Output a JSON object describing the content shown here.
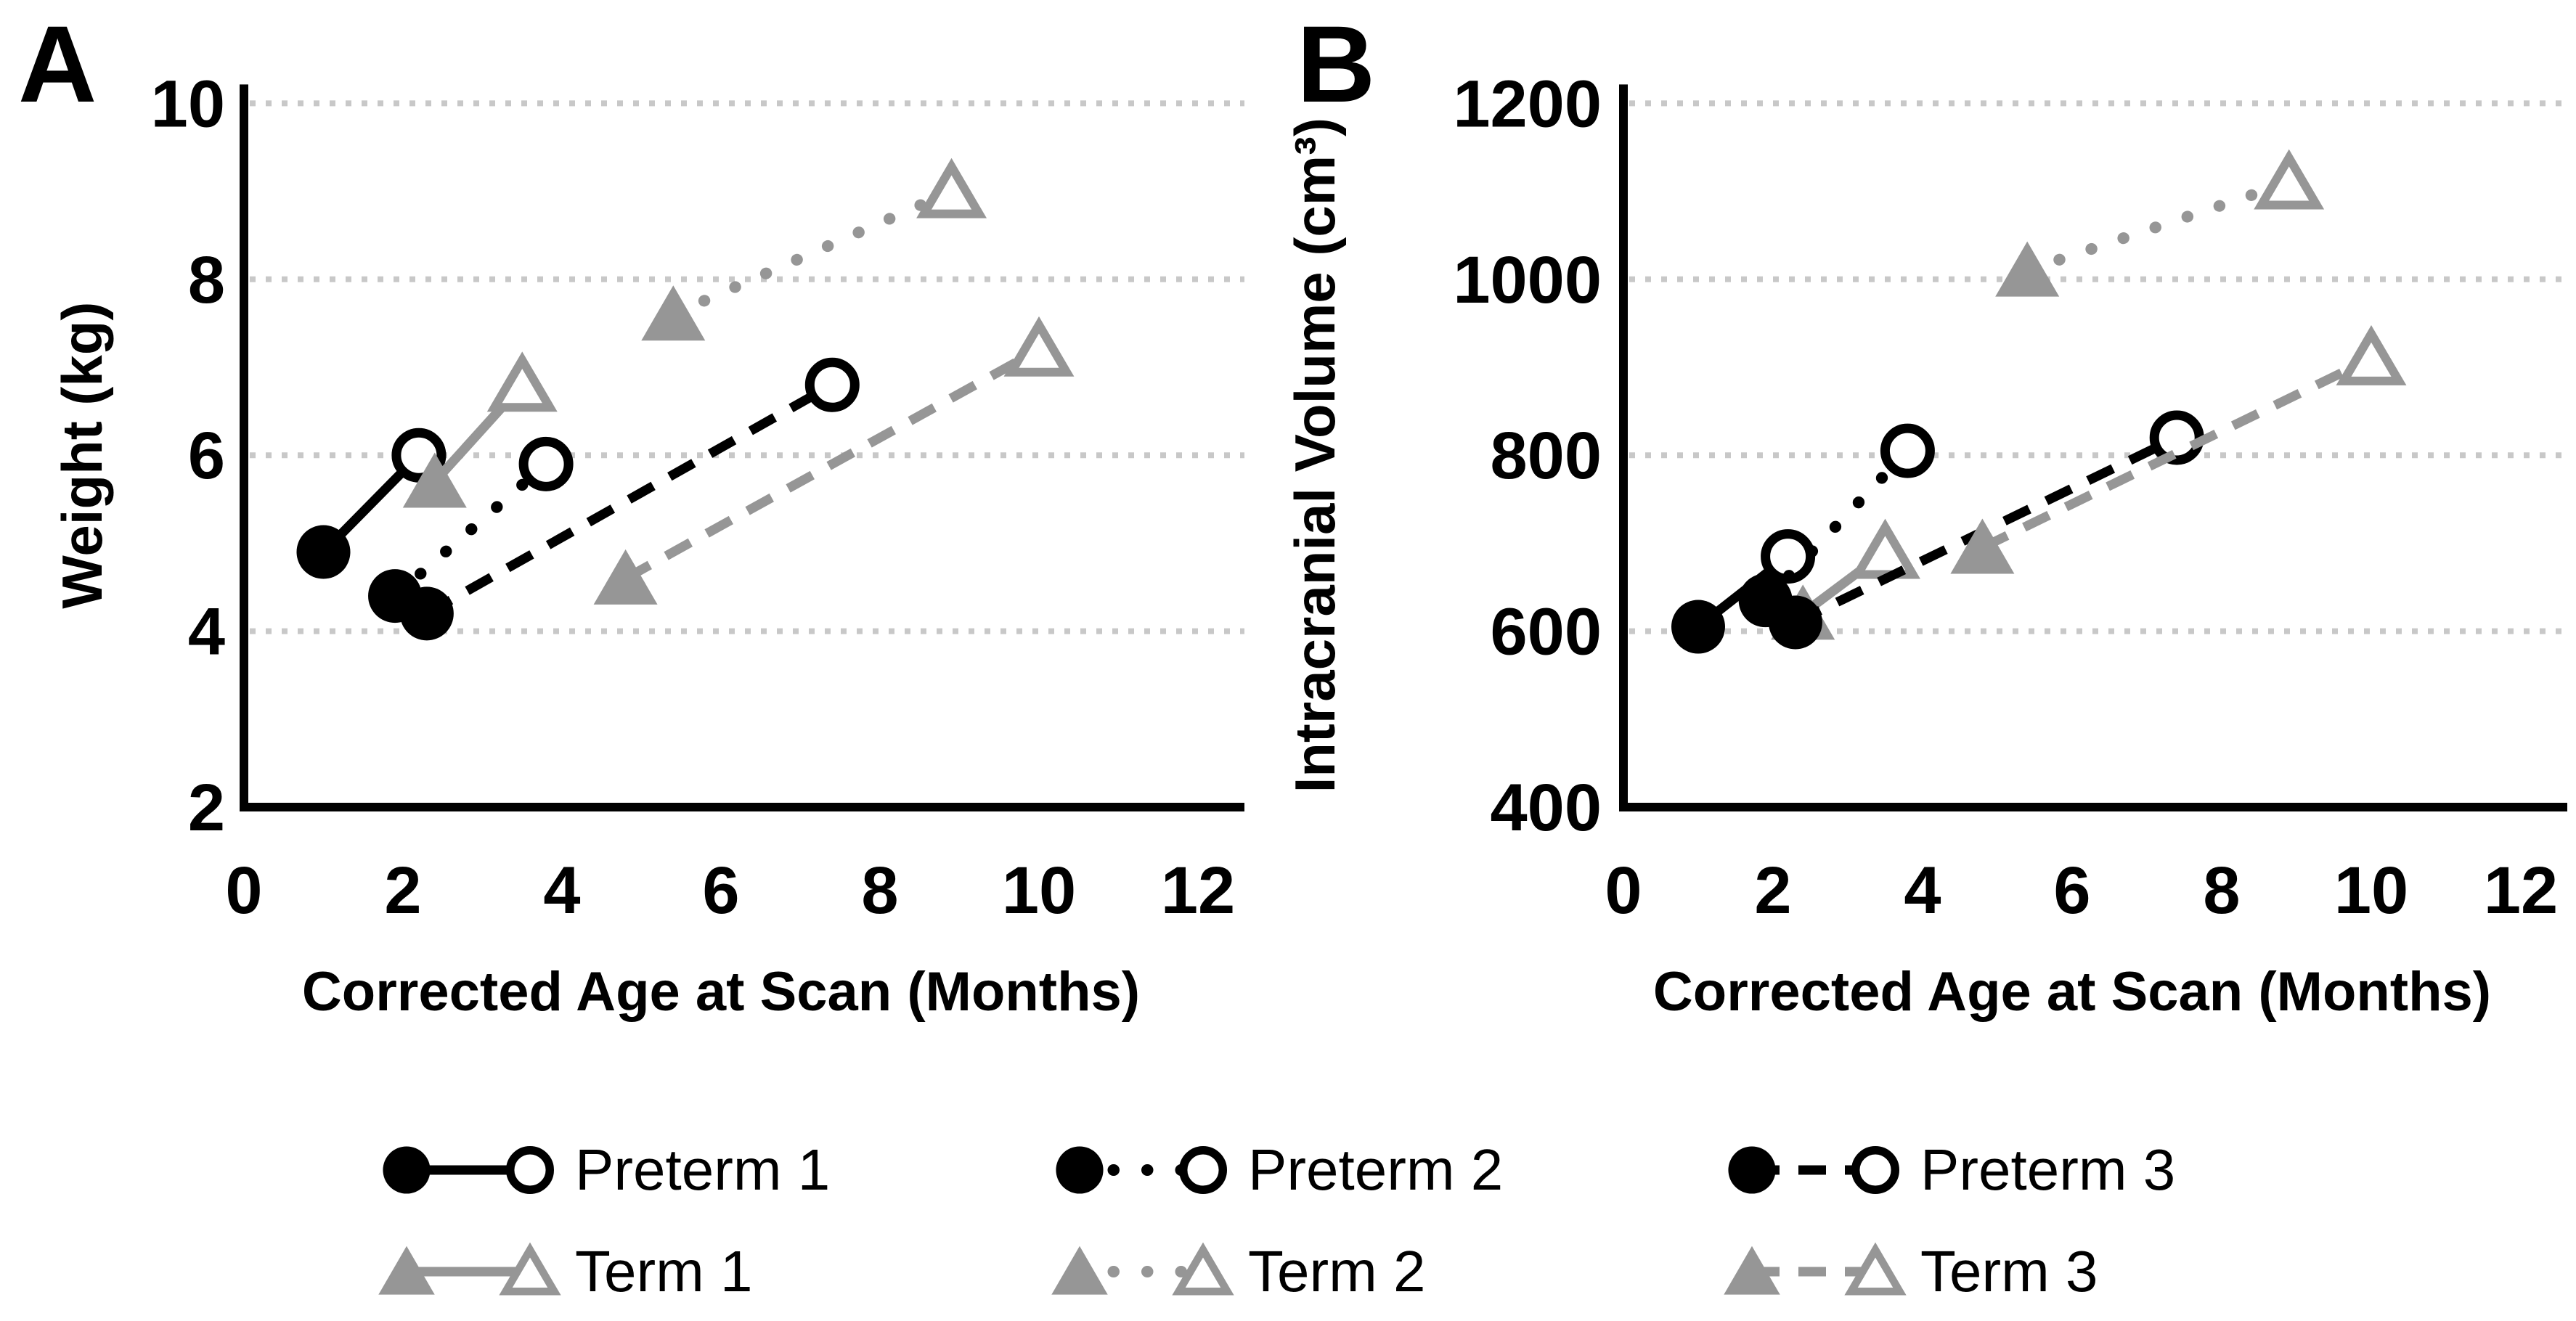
{
  "figure": {
    "description": "Two-panel growth figure: weight and intracranial volume versus corrected age at scan for preterm and term infants",
    "colors": {
      "preterm": "#000000",
      "term": "#969696",
      "gridline": "#c8c8c8",
      "axis": "#000000",
      "background": "#ffffff",
      "text": "#000000"
    }
  },
  "chart_data": [
    {
      "type": "line",
      "panel_label": "A",
      "xlabel": "Corrected Age at Scan (Months)",
      "ylabel": "Weight (kg)",
      "xlim": [
        0,
        12
      ],
      "ylim": [
        2,
        10
      ],
      "xticks": [
        0,
        2,
        4,
        6,
        8,
        10,
        12
      ],
      "yticks": [
        2,
        4,
        6,
        8,
        10
      ],
      "grid_y": [
        4,
        6,
        8,
        10
      ],
      "grid_style": "dotted-horizontal",
      "legend_position": "shared-bottom",
      "series": [
        {
          "name": "Preterm 1",
          "group": "preterm",
          "marker": "circle",
          "line": "solid",
          "marker_fill": [
            "filled",
            "open"
          ],
          "points": [
            [
              1.0,
              4.9
            ],
            [
              2.2,
              6.0
            ]
          ]
        },
        {
          "name": "Preterm 2",
          "group": "preterm",
          "marker": "circle",
          "line": "dotted",
          "marker_fill": [
            "filled",
            "open"
          ],
          "points": [
            [
              1.9,
              4.4
            ],
            [
              3.8,
              5.9
            ]
          ]
        },
        {
          "name": "Preterm 3",
          "group": "preterm",
          "marker": "circle",
          "line": "dashed",
          "marker_fill": [
            "filled",
            "open"
          ],
          "points": [
            [
              2.3,
              4.2
            ],
            [
              7.4,
              6.8
            ]
          ]
        },
        {
          "name": "Term 1",
          "group": "term",
          "marker": "triangle",
          "line": "solid",
          "marker_fill": [
            "filled",
            "open"
          ],
          "points": [
            [
              2.4,
              5.7
            ],
            [
              3.5,
              6.8
            ]
          ]
        },
        {
          "name": "Term 2",
          "group": "term",
          "marker": "triangle",
          "line": "dotted",
          "marker_fill": [
            "filled",
            "open"
          ],
          "points": [
            [
              5.4,
              7.6
            ],
            [
              8.9,
              9.0
            ]
          ]
        },
        {
          "name": "Term 3",
          "group": "term",
          "marker": "triangle",
          "line": "dashed",
          "marker_fill": [
            "filled",
            "open"
          ],
          "points": [
            [
              4.8,
              4.6
            ],
            [
              10.0,
              7.2
            ]
          ]
        }
      ]
    },
    {
      "type": "line",
      "panel_label": "B",
      "xlabel": "Corrected Age at Scan (Months)",
      "ylabel": "Intracranial Volume (cm³)",
      "xlim": [
        0,
        12
      ],
      "ylim": [
        400,
        1200
      ],
      "xticks": [
        0,
        2,
        4,
        6,
        8,
        10,
        12
      ],
      "yticks": [
        400,
        600,
        800,
        1000,
        1200
      ],
      "grid_y": [
        600,
        800,
        1000,
        1200
      ],
      "grid_style": "dotted-horizontal",
      "legend_position": "shared-bottom",
      "series": [
        {
          "name": "Preterm 1",
          "group": "preterm",
          "marker": "circle",
          "line": "solid",
          "marker_fill": [
            "filled",
            "open"
          ],
          "points": [
            [
              1.0,
              605
            ],
            [
              2.2,
              685
            ]
          ]
        },
        {
          "name": "Preterm 2",
          "group": "preterm",
          "marker": "circle",
          "line": "dotted",
          "marker_fill": [
            "filled",
            "open"
          ],
          "points": [
            [
              1.9,
              635
            ],
            [
              3.8,
              805
            ]
          ]
        },
        {
          "name": "Preterm 3",
          "group": "preterm",
          "marker": "circle",
          "line": "dashed",
          "marker_fill": [
            "filled",
            "open"
          ],
          "points": [
            [
              2.3,
              610
            ],
            [
              7.4,
              820
            ]
          ]
        },
        {
          "name": "Term 1",
          "group": "term",
          "marker": "triangle",
          "line": "solid",
          "marker_fill": [
            "filled",
            "open"
          ],
          "points": [
            [
              2.4,
              620
            ],
            [
              3.5,
              690
            ]
          ]
        },
        {
          "name": "Term 2",
          "group": "term",
          "marker": "triangle",
          "line": "dotted",
          "marker_fill": [
            "filled",
            "open"
          ],
          "points": [
            [
              5.4,
              1010
            ],
            [
              8.9,
              1110
            ]
          ]
        },
        {
          "name": "Term 3",
          "group": "term",
          "marker": "triangle",
          "line": "dashed",
          "marker_fill": [
            "filled",
            "open"
          ],
          "points": [
            [
              4.8,
              695
            ],
            [
              10.0,
              910
            ]
          ]
        }
      ]
    }
  ],
  "legend": {
    "items": [
      {
        "label": "Preterm 1",
        "group": "preterm",
        "marker": "circle",
        "line": "solid"
      },
      {
        "label": "Preterm 2",
        "group": "preterm",
        "marker": "circle",
        "line": "dotted"
      },
      {
        "label": "Preterm 3",
        "group": "preterm",
        "marker": "circle",
        "line": "dashed"
      },
      {
        "label": "Term 1",
        "group": "term",
        "marker": "triangle",
        "line": "solid"
      },
      {
        "label": "Term 2",
        "group": "term",
        "marker": "triangle",
        "line": "dotted"
      },
      {
        "label": "Term 3",
        "group": "term",
        "marker": "triangle",
        "line": "dashed"
      }
    ]
  }
}
